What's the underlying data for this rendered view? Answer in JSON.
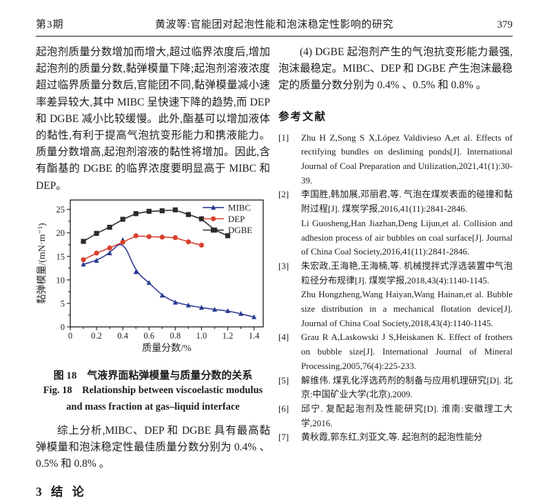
{
  "header": {
    "issue": "第3期",
    "running_title": "黄波等:官能团对起泡性能和泡沫稳定性影响的研究",
    "page_number": "379"
  },
  "left_column": {
    "paragraph_top": "起泡剂质量分数增加而增大,超过临界浓度后,增加起泡剂的质量分数,黏弹模量下降;起泡剂溶液浓度超过临界质量分数后,官能团不同,黏弹模量减小速率差异较大,其中 MIBC 呈快速下降的趋势,而 DEP 和 DGBE 减小比较缓慢。此外,酯基可以增加液体的黏性,有利于提高气泡抗变形能力和携液能力。质量分数增高,起泡剂溶液的黏性将增加。因此,含有酯基的 DGBE 的临界浓度要明显高于 MIBC 和 DEP。",
    "figure_caption_zh": "图 18　气液界面粘弹模量与质量分数的关系",
    "figure_caption_en_line1": "Fig. 18　Relationship between viscoelastic modulus",
    "figure_caption_en_line2": "and mass fraction at gas–liquid interface",
    "paragraph_summary": "综上分析,MIBC、DEP 和 DGBE 具有最高黏弹模量和泡沫稳定性最佳质量分数分别为 0.4% 、0.5% 和 0.8% 。",
    "section_heading": "3   结   论"
  },
  "right_column": {
    "paragraph_item4": "(4) DGBE 起泡剂产生的气泡抗变形能力最强,泡沫最稳定。MIBC、DEP 和 DGBE 产生泡沫最稳定的质量分数分别为 0.4% 、0.5% 和 0.8% 。",
    "references_heading": "参考文献",
    "references": [
      {
        "label": "[1]",
        "parts": [
          "Zhu H Z,Song S X,López Valdivieso A,et al. Effects of rectifying bundles on desliming ponds[J]. International Journal of Coal Preparation and Utilization,2021,41(1):30-39."
        ]
      },
      {
        "label": "[2]",
        "parts": [
          "李国胜,韩加展,邓丽君,等. 气泡在煤炭表面的碰撞和黏附过程[J]. 煤炭学报,2016,41(11):2841-2846.",
          "Li Guosheng,Han Jiazhan,Deng Lijun,et al. Collision and adhesion process of air bubbles on coal surface[J]. Journal of China Coal Society,2016,41(11):2841-2846."
        ]
      },
      {
        "label": "[3]",
        "parts": [
          "朱宏政,王海艳,王海楠,等. 机械搅拌式浮选装置中气泡粒径分布规律[J]. 煤炭学报,2018,43(4):1140-1145.",
          "Zhu Hongzheng,Wang Haiyan,Wang Hainan,et al. Bubble size distribution in a mechanical flotation device[J]. Journal of China Coal Society,2018,43(4):1140-1145."
        ]
      },
      {
        "label": "[4]",
        "parts": [
          "Grau R A,Laskowski J S,Heiskanen K. Effect of frothers on bubble size[J]. International Journal of Mineral Processing,2005,76(4):225-233."
        ]
      },
      {
        "label": "[5]",
        "parts": [
          "解维伟. 煤乳化浮选药剂的制备与应用机理研究[D]. 北京:中国矿业大学(北京),2009."
        ]
      },
      {
        "label": "[6]",
        "parts": [
          "邱宁. 复配起泡剂及性能研究[D]. 淮南:安徽理工大学,2016."
        ]
      },
      {
        "label": "[7]",
        "parts": [
          "黄秋霞,郭东红,刘亚文,等. 起泡剂的起泡性能分"
        ]
      }
    ]
  },
  "chart_data": {
    "type": "line",
    "title": "",
    "xlabel": "质量分数/%",
    "ylabel": "黏弹模量/(mN·m⁻¹)",
    "xlim": [
      0,
      1.47
    ],
    "ylim": [
      0,
      27
    ],
    "x_ticks": [
      0,
      0.2,
      0.4,
      0.6,
      0.8,
      1.0,
      1.2,
      1.4
    ],
    "x_tick_labels": [
      "0",
      "0.2",
      "0.4",
      "0.6",
      "0.8",
      "1.0",
      "1.2",
      "1.4"
    ],
    "y_ticks": [
      0,
      5,
      10,
      15,
      20,
      25
    ],
    "x_minor_step": 0.1,
    "y_minor_step": 2.5,
    "grid": false,
    "legend_position": "top-right",
    "line_style": "b-spline",
    "series": [
      {
        "name": "MIBC",
        "color": "#2b3a94",
        "marker": "triangle",
        "x": [
          0.1,
          0.2,
          0.3,
          0.4,
          0.5,
          0.6,
          0.7,
          0.8,
          0.9,
          1.0,
          1.1,
          1.2,
          1.3,
          1.4
        ],
        "y": [
          13.3,
          14.1,
          15.7,
          18.5,
          11.7,
          9.4,
          6.7,
          5.2,
          4.6,
          4.1,
          3.7,
          3.4,
          2.8,
          2.1
        ]
      },
      {
        "name": "DEP",
        "color": "#d8402f",
        "marker": "circle",
        "x": [
          0.1,
          0.2,
          0.3,
          0.4,
          0.5,
          0.6,
          0.7,
          0.8,
          0.9,
          1.0
        ],
        "y": [
          14.3,
          15.7,
          16.8,
          18.0,
          19.4,
          19.2,
          19.1,
          19.0,
          18.1,
          17.4
        ]
      },
      {
        "name": "DGBE",
        "color": "#2b2b2b",
        "marker": "square",
        "x": [
          0.1,
          0.2,
          0.3,
          0.4,
          0.5,
          0.6,
          0.7,
          0.8,
          0.9,
          1.0,
          1.1,
          1.2
        ],
        "y": [
          18.2,
          19.9,
          21.2,
          22.9,
          24.1,
          24.6,
          24.7,
          24.9,
          23.9,
          23.0,
          20.6,
          19.4
        ]
      }
    ]
  }
}
